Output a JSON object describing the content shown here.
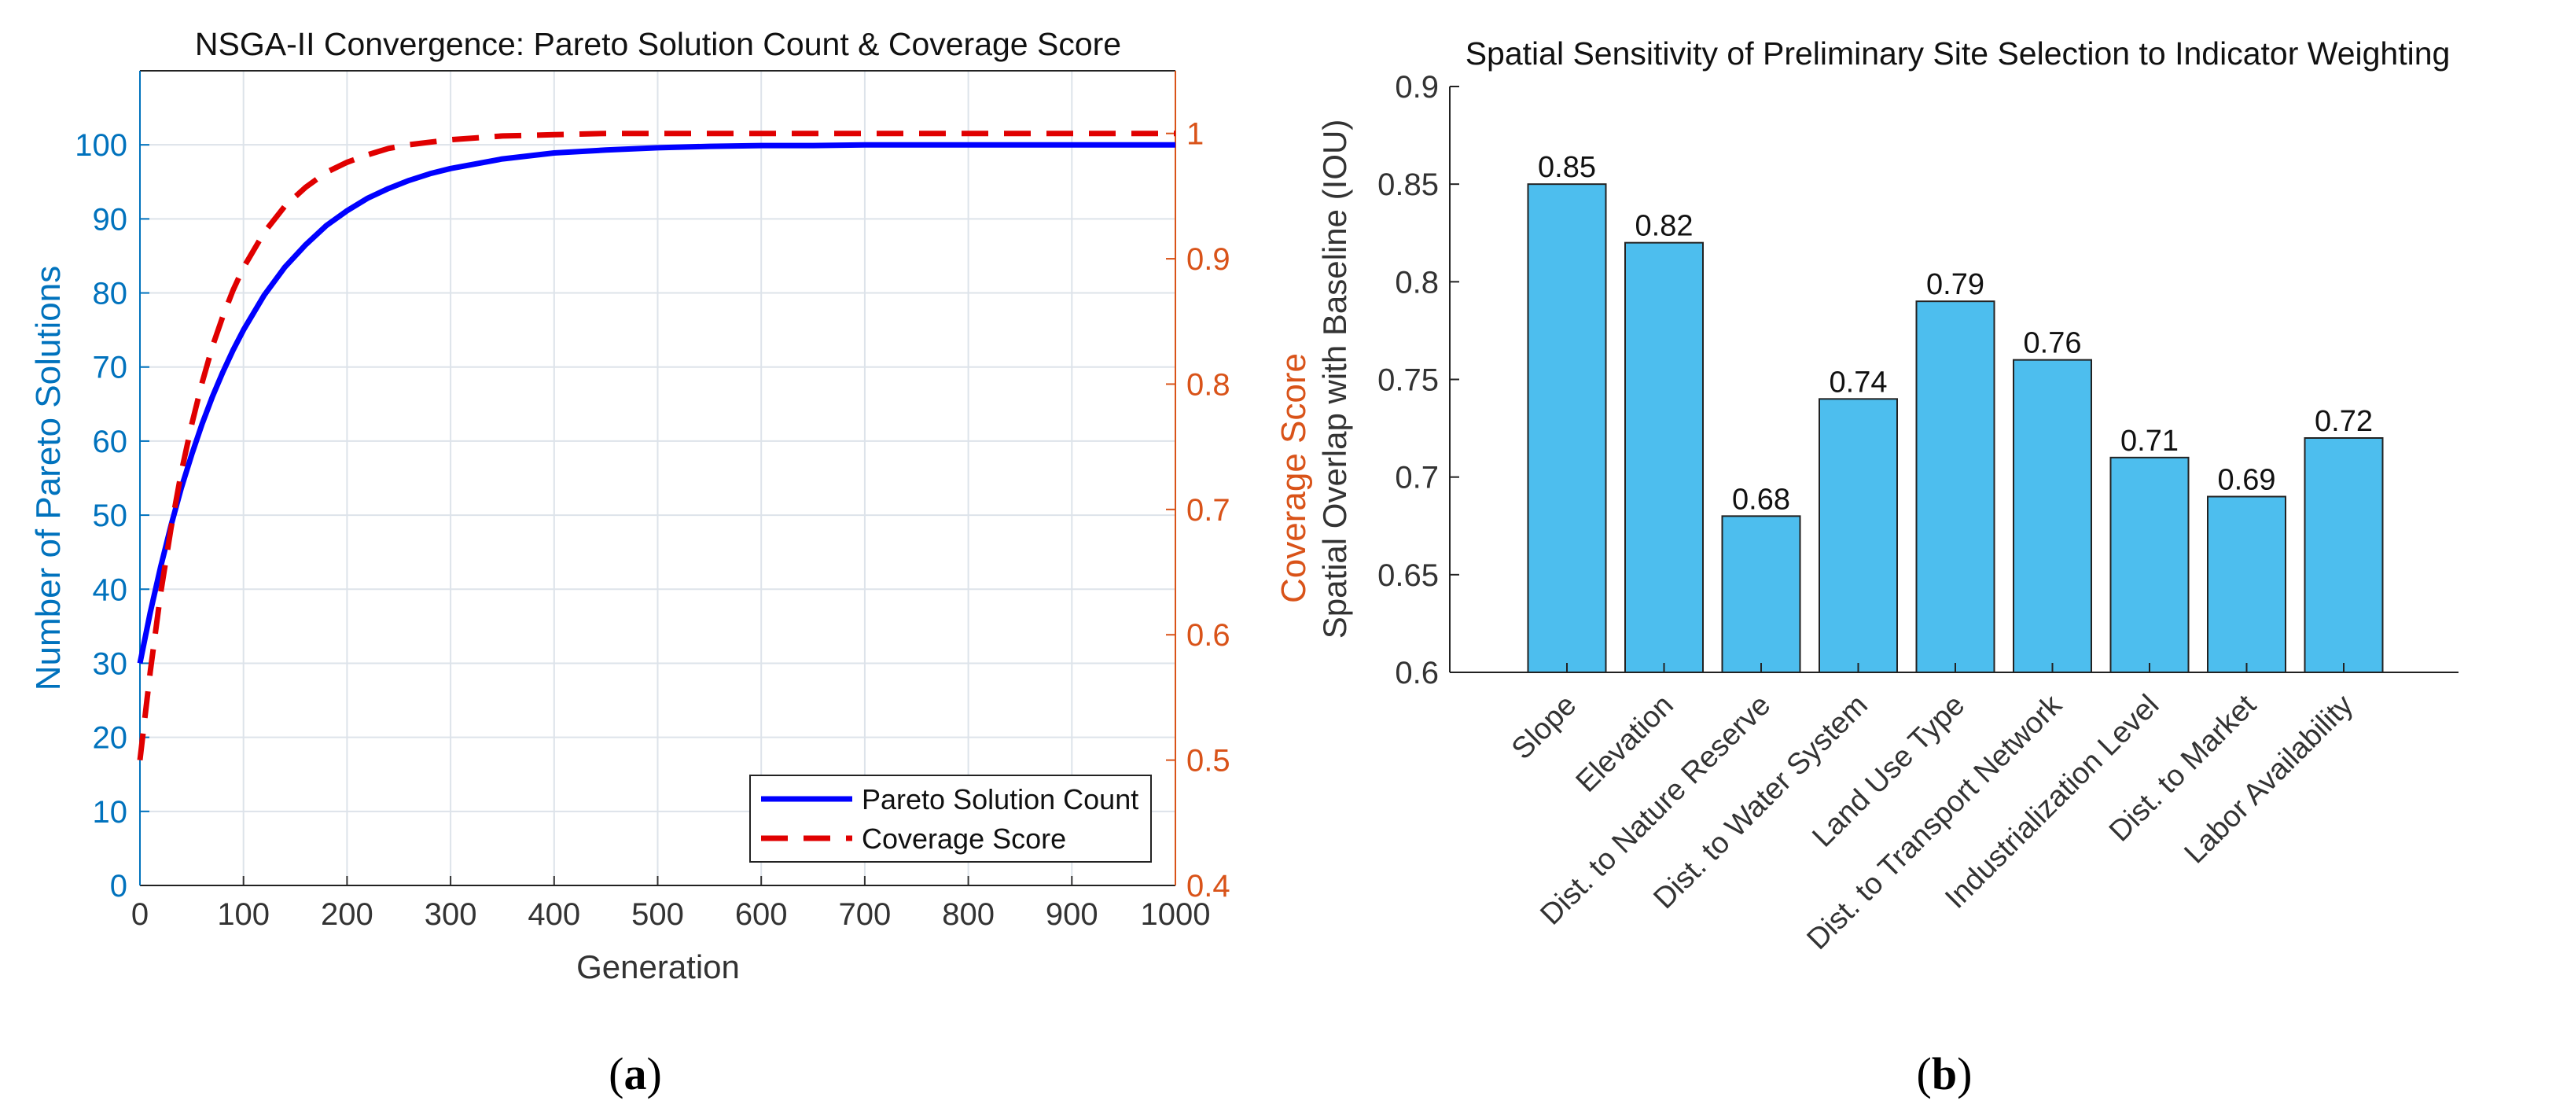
{
  "colors": {
    "left_axis": "#0072BD",
    "right_axis": "#D95319",
    "pareto_line": "#0000FF",
    "coverage_line": "#E00000",
    "bar_fill": "#4DBEEE",
    "grid": "#DDE3EA"
  },
  "captions": {
    "a": "a",
    "b": "b"
  },
  "chart_data": [
    {
      "type": "line",
      "title": "NSGA-II Convergence: Pareto Solution Count & Coverage Score",
      "xlabel": "Generation",
      "ylabel_left": "Number of Pareto Solutions",
      "ylabel_right": "Coverage Score",
      "xlim": [
        0,
        1000
      ],
      "ylim_left": [
        0,
        110
      ],
      "ylim_right": [
        0.4,
        1.05
      ],
      "xticks": [
        0,
        100,
        200,
        300,
        400,
        500,
        600,
        700,
        800,
        900,
        1000
      ],
      "yticks_left": [
        0,
        10,
        20,
        30,
        40,
        50,
        60,
        70,
        80,
        90,
        100
      ],
      "yticks_right": [
        "0.4",
        "0.5",
        "0.6",
        "0.7",
        "0.8",
        "0.9",
        "1"
      ],
      "grid": true,
      "legend_position": "bottom-right",
      "x": [
        0,
        10,
        20,
        30,
        40,
        50,
        60,
        70,
        80,
        90,
        100,
        120,
        140,
        160,
        180,
        200,
        220,
        240,
        260,
        280,
        300,
        350,
        400,
        450,
        500,
        550,
        600,
        650,
        700,
        800,
        900,
        1000
      ],
      "series": [
        {
          "name": "Pareto Solution Count",
          "axis": "left",
          "style": "solid",
          "values": [
            30.0,
            36.9,
            43.0,
            48.6,
            53.7,
            58.2,
            62.3,
            66.0,
            69.3,
            72.3,
            75.0,
            79.7,
            83.5,
            86.5,
            89.1,
            91.1,
            92.8,
            94.1,
            95.2,
            96.1,
            96.8,
            98.1,
            98.9,
            99.3,
            99.6,
            99.8,
            99.9,
            99.9,
            100,
            100,
            100,
            100
          ]
        },
        {
          "name": "Coverage Score",
          "axis": "right",
          "style": "dashed",
          "values": [
            0.5,
            0.571,
            0.633,
            0.685,
            0.73,
            0.768,
            0.801,
            0.83,
            0.854,
            0.875,
            0.893,
            0.921,
            0.942,
            0.957,
            0.969,
            0.977,
            0.983,
            0.988,
            0.991,
            0.993,
            0.995,
            0.998,
            0.999,
            1.0,
            1.0,
            1.0,
            1.0,
            1.0,
            1.0,
            1.0,
            1.0,
            1.0
          ]
        }
      ]
    },
    {
      "type": "bar",
      "title": "Spatial Sensitivity of Preliminary Site Selection to Indicator Weighting",
      "xlabel": "",
      "ylabel": "Spatial Overlap with Baseline (IOU)",
      "ylim": [
        0.6,
        0.9
      ],
      "yticks": [
        "0.6",
        "0.65",
        "0.7",
        "0.75",
        "0.8",
        "0.85",
        "0.9"
      ],
      "grid": false,
      "categories": [
        "Slope",
        "Elevation",
        "Dist. to Nature Reserve",
        "Dist. to Water System",
        "Land Use Type",
        "Dist. to Transport Network",
        "Industrialization Level",
        "Dist. to Market",
        "Labor Availability"
      ],
      "values": [
        0.85,
        0.82,
        0.68,
        0.74,
        0.79,
        0.76,
        0.71,
        0.69,
        0.72
      ],
      "data_labels": [
        "0.85",
        "0.82",
        "0.68",
        "0.74",
        "0.79",
        "0.76",
        "0.71",
        "0.69",
        "0.72"
      ]
    }
  ]
}
